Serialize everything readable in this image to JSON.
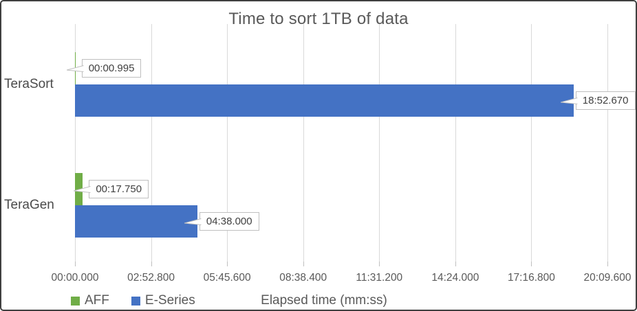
{
  "chart_data": {
    "type": "bar",
    "orientation": "horizontal",
    "title": "Time to sort 1TB of data",
    "categories": [
      "TeraSort",
      "TeraGen"
    ],
    "series": [
      {
        "name": "AFF",
        "color": "#70AD47",
        "values_seconds": [
          0.995,
          17.75
        ],
        "labels": [
          "00:00.995",
          "00:17.750"
        ]
      },
      {
        "name": "E-Series",
        "color": "#4472C4",
        "values_seconds": [
          1132.67,
          278.0
        ],
        "labels": [
          "18:52.670",
          "04:38.000"
        ]
      }
    ],
    "x_ticks": [
      "00:00.000",
      "02:52.800",
      "05:45.600",
      "08:38.400",
      "11:31.200",
      "14:24.000",
      "17:16.800",
      "20:09.600"
    ],
    "x_tick_seconds": [
      0,
      172.8,
      345.6,
      518.4,
      691.2,
      864.0,
      1036.8,
      1209.6
    ],
    "x_max_seconds": 1209.6,
    "xlabel": "Elapsed time (mm:ss)",
    "grid": true,
    "legend_position": "bottom-left",
    "gridline_color": "#D9D9D9",
    "text_color": "#595959"
  }
}
